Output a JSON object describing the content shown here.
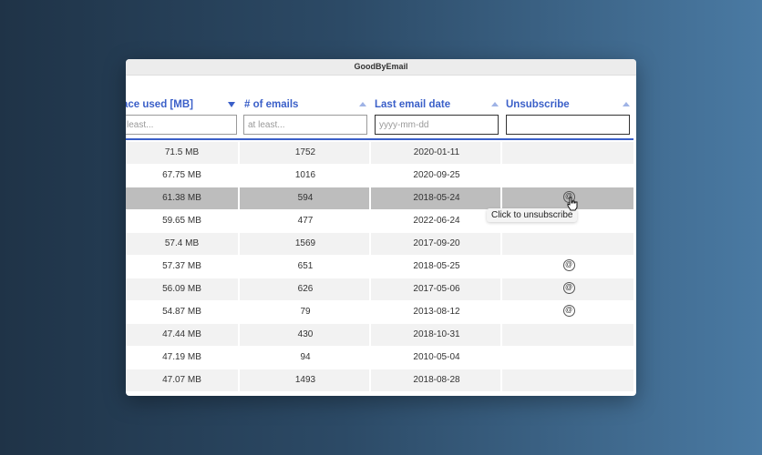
{
  "window": {
    "title": "GoodByEmail"
  },
  "columns": [
    {
      "label": "ace used [MB]",
      "placeholder": "least..."
    },
    {
      "label": "# of emails",
      "placeholder": "at least..."
    },
    {
      "label": "Last email date",
      "placeholder": "yyyy-mm-dd"
    },
    {
      "label": "Unsubscribe",
      "placeholder": ""
    }
  ],
  "sort_indicators": [
    "sorted-descending",
    "unsorted",
    "unsorted",
    "unsorted"
  ],
  "rows": [
    {
      "space": "71.5 MB",
      "count": "1752",
      "date": "2020-01-11",
      "unsub": ""
    },
    {
      "space": "67.75 MB",
      "count": "1016",
      "date": "2020-09-25",
      "unsub": ""
    },
    {
      "space": "61.38 MB",
      "count": "594",
      "date": "2018-05-24",
      "unsub": "@"
    },
    {
      "space": "59.65 MB",
      "count": "477",
      "date": "2022-06-24",
      "unsub": ""
    },
    {
      "space": "57.4 MB",
      "count": "1569",
      "date": "2017-09-20",
      "unsub": ""
    },
    {
      "space": "57.37 MB",
      "count": "651",
      "date": "2018-05-25",
      "unsub": "@"
    },
    {
      "space": "56.09 MB",
      "count": "626",
      "date": "2017-05-06",
      "unsub": "@"
    },
    {
      "space": "54.87 MB",
      "count": "79",
      "date": "2013-08-12",
      "unsub": "@"
    },
    {
      "space": "47.44 MB",
      "count": "430",
      "date": "2018-10-31",
      "unsub": ""
    },
    {
      "space": "47.19 MB",
      "count": "94",
      "date": "2010-05-04",
      "unsub": ""
    },
    {
      "space": "47.07 MB",
      "count": "1493",
      "date": "2018-08-28",
      "unsub": ""
    }
  ],
  "selected_row": 2,
  "tooltip": "Click to unsubscribe",
  "colors": {
    "accent": "#3a5fc8",
    "selected_row": "#bdbdbd",
    "alt_row": "#f2f2f2"
  }
}
